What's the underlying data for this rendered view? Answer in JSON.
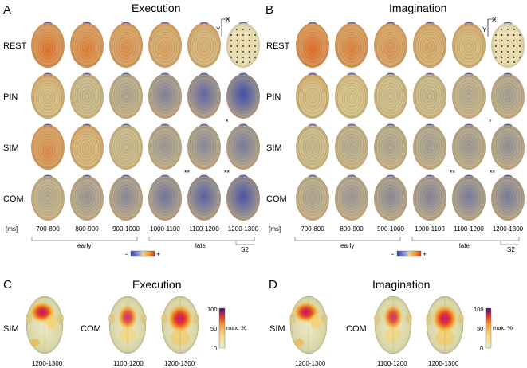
{
  "panels": {
    "A": {
      "letter": "A",
      "title": "Execution"
    },
    "B": {
      "letter": "B",
      "title": "Imagination"
    },
    "C": {
      "letter": "C",
      "title": "Execution"
    },
    "D": {
      "letter": "D",
      "title": "Imagination"
    }
  },
  "conditions": [
    "REST",
    "PIN",
    "SIM",
    "COM"
  ],
  "time_unit": "[ms]",
  "time_windows": [
    "700-800",
    "800-900",
    "900-1000",
    "1000-1100",
    "1100-1200",
    "1200-1300"
  ],
  "phases": {
    "early": "early",
    "late": "late",
    "s2": "S2"
  },
  "axis_x": "X",
  "axis_y": "Y",
  "colorbar_small": {
    "minus": "-",
    "plus": "+"
  },
  "significance": {
    "sim_1200": "*",
    "com_1100": "**",
    "com_1200": "**"
  },
  "intensity": {
    "execution": {
      "REST": [
        0.85,
        0.75,
        0.55,
        0.35,
        0.2,
        0.0
      ],
      "PIN": [
        0.1,
        -0.1,
        -0.25,
        -0.5,
        -0.7,
        -0.9
      ],
      "SIM": [
        0.6,
        0.2,
        -0.1,
        -0.35,
        -0.45,
        -0.55
      ],
      "COM": [
        -0.2,
        -0.35,
        -0.45,
        -0.6,
        -0.75,
        -0.85
      ]
    },
    "imagination": {
      "REST": [
        0.9,
        0.7,
        0.5,
        0.3,
        0.15,
        0.0
      ],
      "PIN": [
        0.05,
        0.0,
        -0.05,
        -0.1,
        -0.2,
        -0.3
      ],
      "SIM": [
        -0.1,
        -0.2,
        -0.25,
        -0.3,
        -0.35,
        -0.4
      ],
      "COM": [
        -0.25,
        -0.35,
        -0.45,
        -0.5,
        -0.55,
        -0.55
      ]
    }
  },
  "source_panels": {
    "C": [
      {
        "condition": "SIM",
        "windows": [
          "1200-1300"
        ]
      },
      {
        "condition": "COM",
        "windows": [
          "1100-1200",
          "1200-1300"
        ]
      }
    ],
    "D": [
      {
        "condition": "SIM",
        "windows": [
          "1200-1300"
        ]
      },
      {
        "condition": "COM",
        "windows": [
          "1100-1200",
          "1200-1300"
        ]
      }
    ]
  },
  "colorbar_pct": {
    "max": "100",
    "mid": "50",
    "min": "0",
    "label": "max. %"
  },
  "colors": {
    "neg": "#2f3fae",
    "mid": "#d6c58c",
    "pos": "#e4631c",
    "src_hot": "#c0127a",
    "src_warm": "#f0a030"
  }
}
